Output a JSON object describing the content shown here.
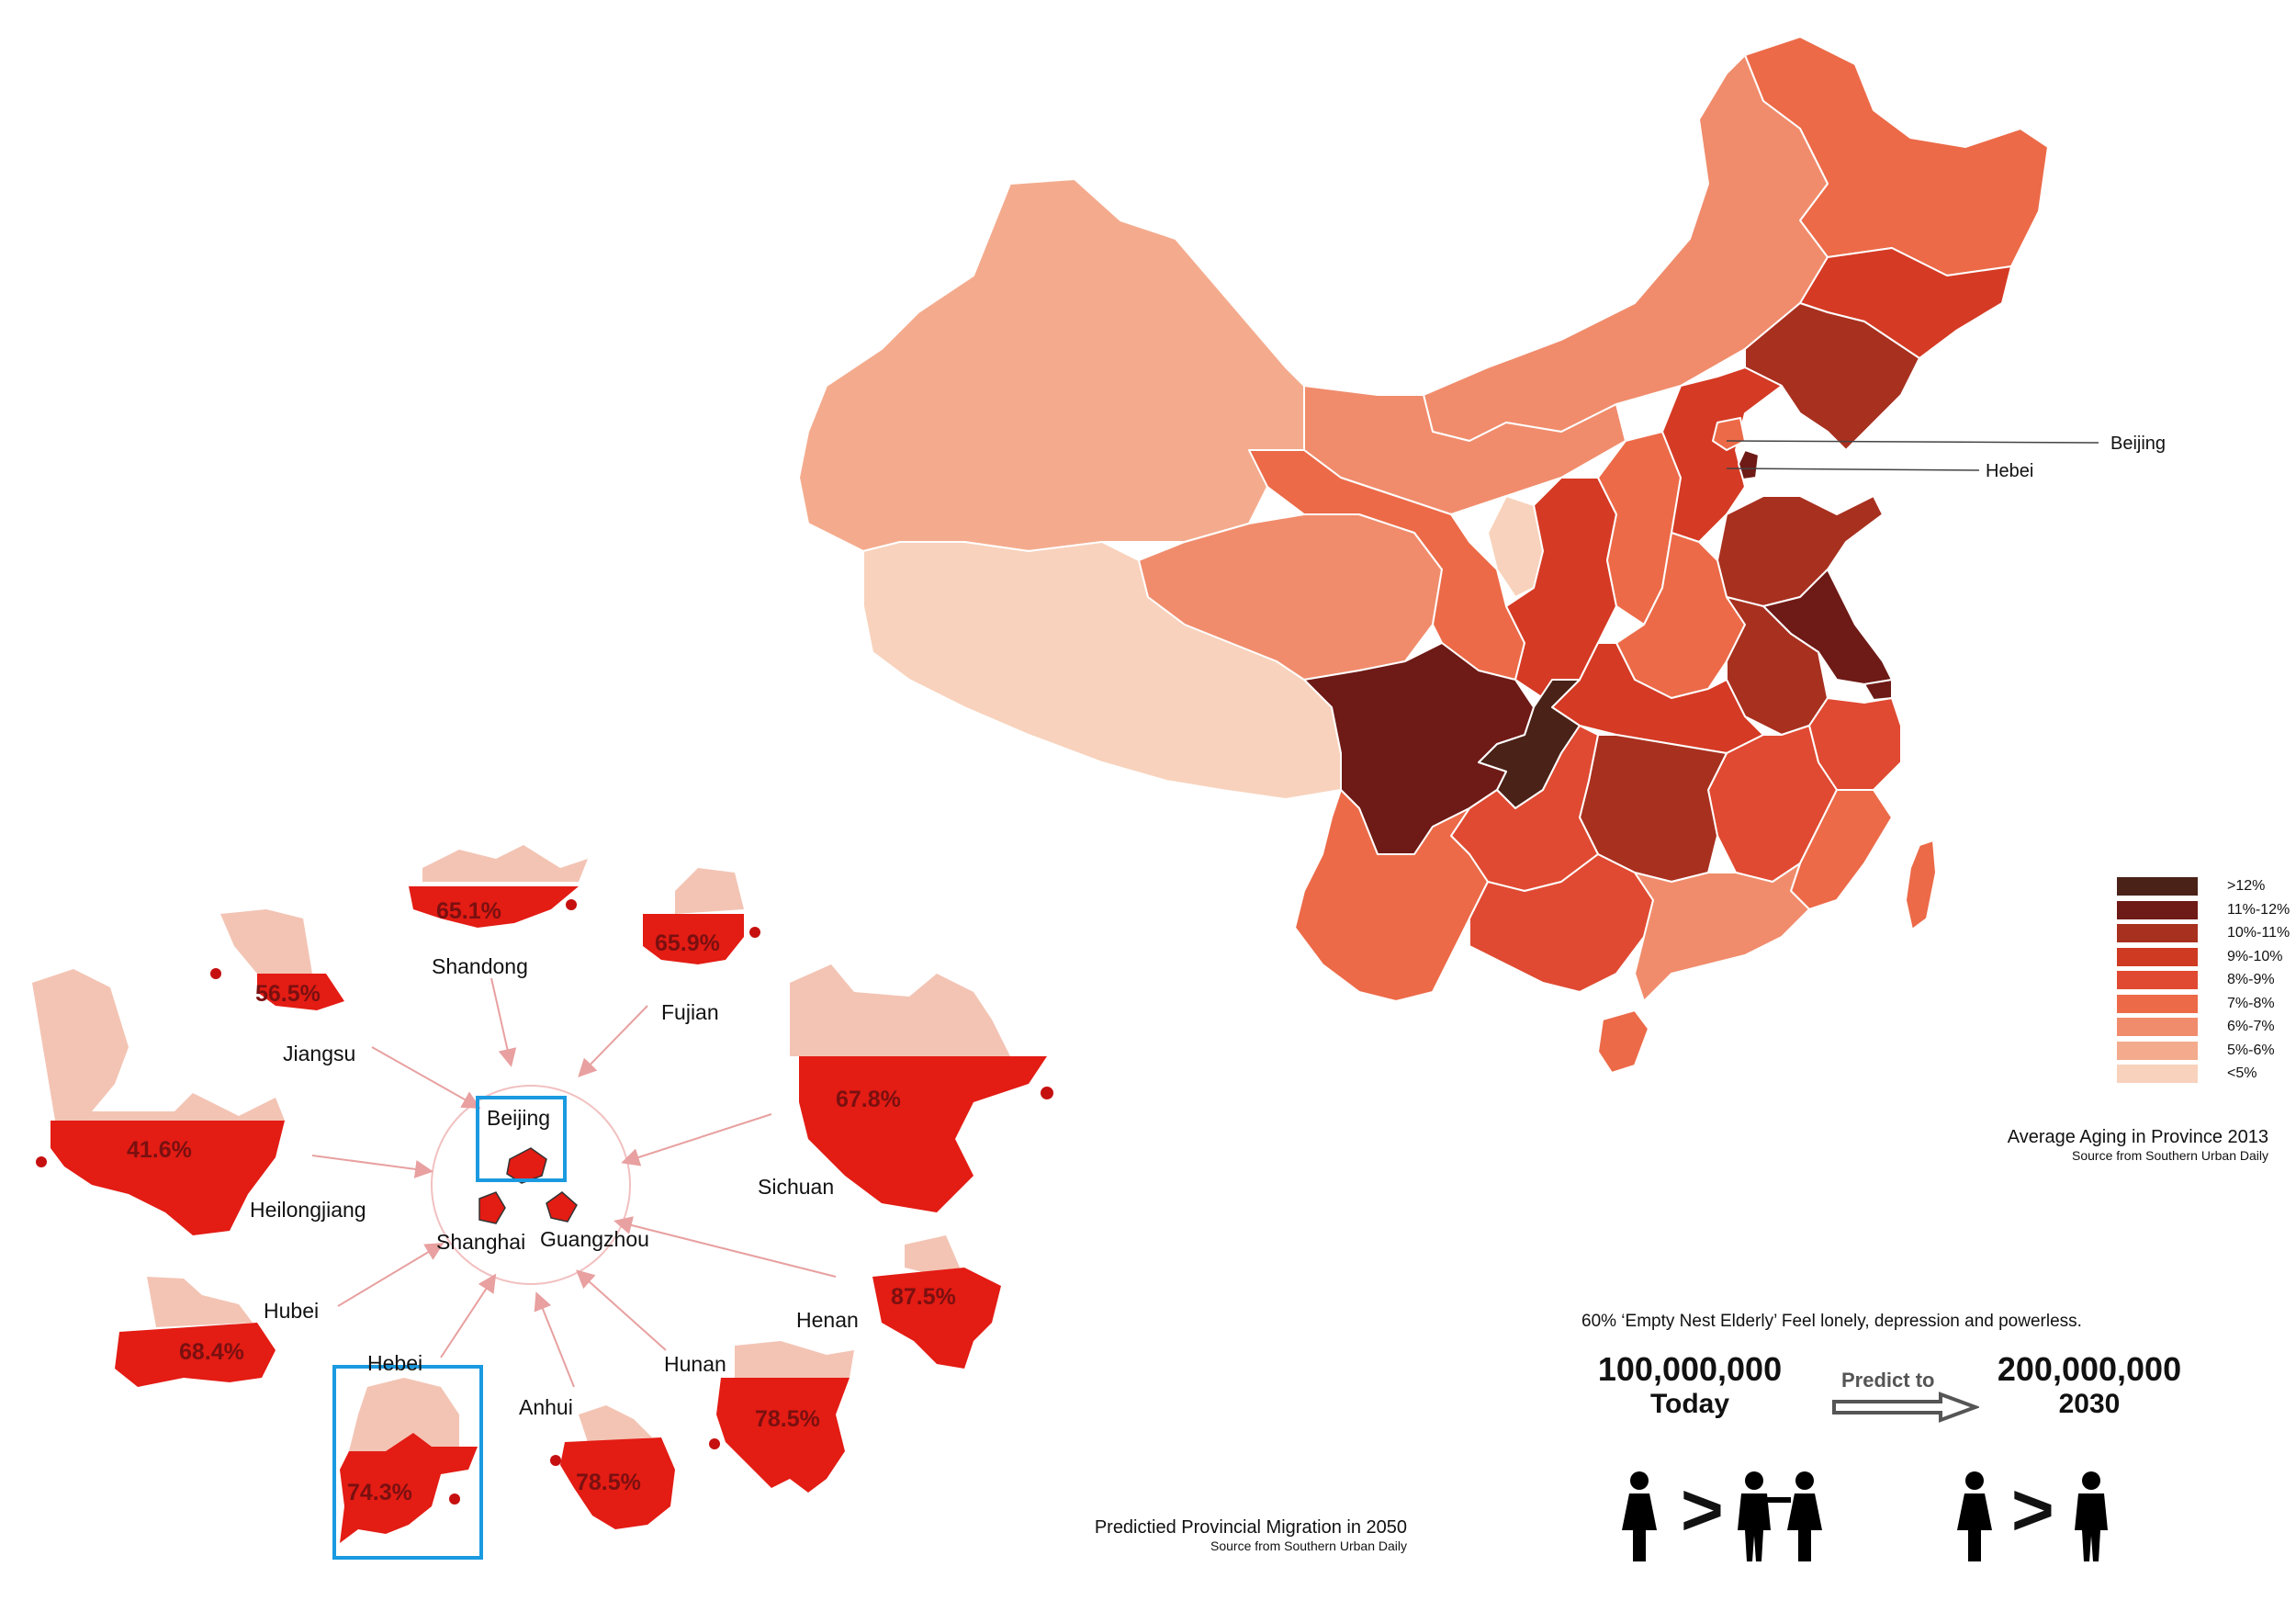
{
  "map": {
    "callouts": {
      "beijing": "Beijing",
      "hebei": "Hebei"
    },
    "caption": "Average Aging in Province 2013",
    "source": "Source from Southern Urban Daily"
  },
  "legend": {
    "items": [
      {
        "label": ">12%",
        "color": "#4a2218"
      },
      {
        "label": "11%-12%",
        "color": "#6e1a16"
      },
      {
        "label": "10%-11%",
        "color": "#a8301f"
      },
      {
        "label": "9%-10%",
        "color": "#cf3a22"
      },
      {
        "label": "8%-9%",
        "color": "#e04a32"
      },
      {
        "label": "7%-8%",
        "color": "#ec6a48"
      },
      {
        "label": "6%-7%",
        "color": "#f08c6c"
      },
      {
        "label": "5%-6%",
        "color": "#f4ab8d"
      },
      {
        "label": "<5%",
        "color": "#f8d2bc"
      }
    ]
  },
  "migration": {
    "center_labels": {
      "beijing": "Beijing",
      "shanghai": "Shanghai",
      "guangzhou": "Guangzhou"
    },
    "provinces": [
      {
        "name": "Shandong",
        "percent": "65.1%",
        "value": 65.1
      },
      {
        "name": "Fujian",
        "percent": "65.9%",
        "value": 65.9
      },
      {
        "name": "Jiangsu",
        "percent": "56.5%",
        "value": 56.5
      },
      {
        "name": "Sichuan",
        "percent": "67.8%",
        "value": 67.8
      },
      {
        "name": "Heilongjiang",
        "percent": "41.6%",
        "value": 41.6
      },
      {
        "name": "Henan",
        "percent": "87.5%",
        "value": 87.5
      },
      {
        "name": "Hubei",
        "percent": "68.4%",
        "value": 68.4
      },
      {
        "name": "Hunan",
        "percent": "78.5%",
        "value": 78.5
      },
      {
        "name": "Hebei",
        "percent": "74.3%",
        "value": 74.3
      },
      {
        "name": "Anhui",
        "percent": "78.5%",
        "value": 78.5
      }
    ],
    "caption": "Predictied Provincial Migration in 2050",
    "source": "Source from Southern Urban Daily"
  },
  "stats": {
    "headline": "60% ‘Empty Nest Elderly’ Feel lonely, depression and powerless.",
    "today_value": "100,000,000",
    "today_label": "Today",
    "predict_label": "Predict to",
    "future_value": "200,000,000",
    "future_label": "2030",
    "compare_symbol": ">"
  },
  "colors": {
    "red_fill": "#e31c14",
    "pale_fill": "#f3c4b4",
    "highlight_box": "#1a9ae0",
    "arrow_line": "#e8a0a0"
  }
}
